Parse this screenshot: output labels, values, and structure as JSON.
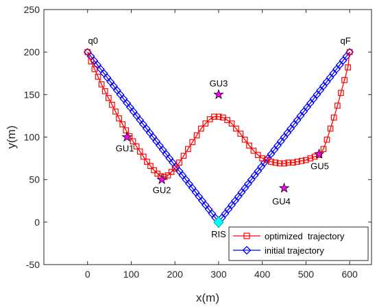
{
  "chart_data": {
    "type": "line",
    "title": "",
    "xlabel": "x(m)",
    "ylabel": "y(m)",
    "xlim": [
      -100,
      650
    ],
    "ylim": [
      -50,
      250
    ],
    "xticks": [
      0,
      100,
      200,
      300,
      400,
      500,
      600
    ],
    "yticks": [
      -50,
      0,
      50,
      100,
      150,
      200,
      250
    ],
    "grid": false,
    "legend_position": "bottom-right",
    "series": [
      {
        "name": "optimized  trajectory",
        "color": "#ff0000",
        "marker": "square",
        "x": [
          0,
          8,
          16,
          24,
          32,
          40,
          48,
          56,
          64,
          72,
          80,
          88,
          96,
          104,
          112,
          120,
          128,
          136,
          144,
          152,
          160,
          168,
          176,
          184,
          192,
          200,
          210,
          220,
          230,
          240,
          250,
          260,
          270,
          280,
          290,
          300,
          310,
          320,
          330,
          340,
          350,
          360,
          370,
          380,
          390,
          400,
          410,
          420,
          430,
          440,
          450,
          460,
          470,
          480,
          490,
          500,
          510,
          520,
          530,
          540,
          548,
          556,
          564,
          572,
          580,
          588,
          596,
          600
        ],
        "y": [
          200,
          189,
          180,
          171,
          162,
          154,
          146,
          138,
          130,
          122,
          115,
          108,
          101,
          95,
          89,
          83,
          77,
          71,
          66,
          61,
          57,
          54,
          53,
          55,
          59,
          63,
          70,
          78,
          86,
          94,
          102,
          110,
          116,
          121,
          124,
          124,
          123,
          120,
          116,
          110,
          104,
          97,
          90,
          84,
          79,
          75,
          73,
          71,
          70,
          69,
          69,
          70,
          70,
          71,
          72,
          73,
          75,
          77,
          79,
          86,
          97,
          110,
          123,
          137,
          152,
          167,
          182,
          200
        ]
      },
      {
        "name": "initial trajectory",
        "color": "#0000ff",
        "marker": "diamond",
        "x": [
          0,
          7.5,
          15,
          22.5,
          30,
          37.5,
          45,
          52.5,
          60,
          67.5,
          75,
          82.5,
          90,
          97.5,
          105,
          112.5,
          120,
          127.5,
          135,
          142.5,
          150,
          157.5,
          165,
          172.5,
          180,
          187.5,
          195,
          202.5,
          210,
          217.5,
          225,
          232.5,
          240,
          247.5,
          255,
          262.5,
          270,
          277.5,
          285,
          292.5,
          300,
          307.5,
          315,
          322.5,
          330,
          337.5,
          345,
          352.5,
          360,
          367.5,
          375,
          382.5,
          390,
          397.5,
          405,
          412.5,
          420,
          427.5,
          435,
          442.5,
          450,
          457.5,
          465,
          472.5,
          480,
          487.5,
          495,
          502.5,
          510,
          517.5,
          525,
          532.5,
          540,
          547.5,
          555,
          562.5,
          570,
          577.5,
          585,
          592.5,
          600
        ],
        "y": [
          200,
          195,
          190,
          185,
          180,
          175,
          170,
          165,
          160,
          155,
          150,
          145,
          140,
          135,
          130,
          125,
          120,
          115,
          110,
          105,
          100,
          95,
          90,
          85,
          80,
          75,
          70,
          65,
          60,
          55,
          50,
          45,
          40,
          35,
          30,
          25,
          20,
          15,
          10,
          5,
          0,
          5,
          10,
          15,
          20,
          25,
          30,
          35,
          40,
          45,
          50,
          55,
          60,
          65,
          70,
          75,
          80,
          85,
          90,
          95,
          100,
          105,
          110,
          115,
          120,
          125,
          130,
          135,
          140,
          145,
          150,
          155,
          160,
          165,
          170,
          175,
          180,
          185,
          190,
          195,
          200
        ]
      }
    ],
    "points": [
      {
        "label": "GU1",
        "x": 90,
        "y": 100,
        "marker": "star",
        "color": "#ff00ff"
      },
      {
        "label": "GU2",
        "x": 170,
        "y": 50,
        "marker": "star",
        "color": "#ff00ff"
      },
      {
        "label": "GU3",
        "x": 300,
        "y": 150,
        "marker": "star",
        "color": "#ff00ff"
      },
      {
        "label": "GU4",
        "x": 450,
        "y": 40,
        "marker": "star",
        "color": "#ff00ff"
      },
      {
        "label": "GU5",
        "x": 530,
        "y": 80,
        "marker": "star",
        "color": "#ff00ff"
      },
      {
        "label": "RIS",
        "x": 300,
        "y": 0,
        "marker": "diamond",
        "color": "#00ffff"
      }
    ],
    "annotations": [
      {
        "text": "q0",
        "x": 0,
        "y": 200
      },
      {
        "text": "qF",
        "x": 600,
        "y": 200
      }
    ]
  }
}
